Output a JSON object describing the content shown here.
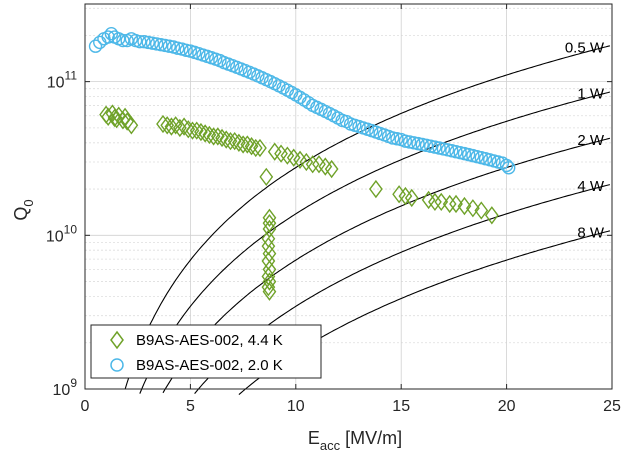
{
  "chart_data": {
    "type": "scatter",
    "xlabel_main": "E",
    "xlabel_sub": "acc",
    "xlabel_unit": " [MV/m]",
    "ylabel_main": "Q",
    "ylabel_sub": "0",
    "xlim": [
      0,
      25
    ],
    "ylim": [
      1000000000.0,
      320000000000.0
    ],
    "y_scale": "log",
    "grid": true,
    "legend_position": "bottom-left",
    "x_ticks": [
      0,
      5,
      10,
      15,
      20,
      25
    ],
    "x_tick_labels": [
      "0",
      "5",
      "10",
      "15",
      "20",
      "25"
    ],
    "y_ticks": [
      1000000000.0,
      10000000000.0,
      100000000000.0
    ],
    "y_tick_labels": [
      {
        "base": "10",
        "exp": "9"
      },
      {
        "base": "10",
        "exp": "10"
      },
      {
        "base": "10",
        "exp": "11"
      }
    ],
    "power_curves": [
      {
        "label": "0.5 W",
        "watts": 0.5
      },
      {
        "label": "1 W",
        "watts": 1
      },
      {
        "label": "2 W",
        "watts": 2
      },
      {
        "label": "4 W",
        "watts": 4
      },
      {
        "label": "8 W",
        "watts": 8
      }
    ],
    "series": [
      {
        "name": "B9AS-AES-002, 4.4 K",
        "marker": "diamond",
        "color": "#6fa229",
        "points": [
          [
            1.0,
            61000000000.0
          ],
          [
            1.1,
            59000000000.0
          ],
          [
            1.3,
            62000000000.0
          ],
          [
            1.4,
            58000000000.0
          ],
          [
            1.5,
            57000000000.0
          ],
          [
            1.6,
            60000000000.0
          ],
          [
            1.8,
            56000000000.0
          ],
          [
            1.9,
            59000000000.0
          ],
          [
            2.0,
            55000000000.0
          ],
          [
            2.2,
            52000000000.0
          ],
          [
            3.7,
            53000000000.0
          ],
          [
            3.9,
            52000000000.0
          ],
          [
            4.1,
            51000000000.0
          ],
          [
            4.3,
            52000000000.0
          ],
          [
            4.5,
            50000000000.0
          ],
          [
            4.7,
            51000000000.0
          ],
          [
            4.9,
            49000000000.0
          ],
          [
            5.1,
            48000000000.0
          ],
          [
            5.3,
            48000000000.0
          ],
          [
            5.5,
            47000000000.0
          ],
          [
            5.7,
            46000000000.0
          ],
          [
            5.9,
            45000000000.0
          ],
          [
            6.1,
            44000000000.0
          ],
          [
            6.3,
            44000000000.0
          ],
          [
            6.5,
            43000000000.0
          ],
          [
            6.7,
            42000000000.0
          ],
          [
            6.9,
            41000000000.0
          ],
          [
            7.1,
            41000000000.0
          ],
          [
            7.3,
            40000000000.0
          ],
          [
            7.5,
            39000000000.0
          ],
          [
            7.7,
            39000000000.0
          ],
          [
            7.9,
            38000000000.0
          ],
          [
            8.1,
            37000000000.0
          ],
          [
            8.3,
            37000000000.0
          ],
          [
            8.6,
            24000000000.0
          ],
          [
            9.0,
            35000000000.0
          ],
          [
            9.3,
            34000000000.0
          ],
          [
            9.6,
            33000000000.0
          ],
          [
            9.9,
            32000000000.0
          ],
          [
            10.2,
            31000000000.0
          ],
          [
            10.5,
            30000000000.0
          ],
          [
            10.8,
            29000000000.0
          ],
          [
            11.1,
            29000000000.0
          ],
          [
            11.4,
            28000000000.0
          ],
          [
            11.7,
            27000000000.0
          ],
          [
            8.75,
            13000000000.0
          ],
          [
            8.75,
            12000000000.0
          ],
          [
            8.75,
            11000000000.0
          ],
          [
            8.7,
            9500000000.0
          ],
          [
            8.7,
            8500000000.0
          ],
          [
            8.75,
            7600000000.0
          ],
          [
            8.7,
            6800000000.0
          ],
          [
            8.75,
            6000000000.0
          ],
          [
            8.7,
            5400000000.0
          ],
          [
            8.75,
            5000000000.0
          ],
          [
            8.7,
            4600000000.0
          ],
          [
            8.75,
            4300000000.0
          ],
          [
            13.8,
            20000000000.0
          ],
          [
            14.9,
            18500000000.0
          ],
          [
            15.2,
            18000000000.0
          ],
          [
            15.5,
            17500000000.0
          ],
          [
            16.3,
            17000000000.0
          ],
          [
            16.6,
            16500000000.0
          ],
          [
            16.9,
            16500000000.0
          ],
          [
            17.3,
            16000000000.0
          ],
          [
            17.6,
            16000000000.0
          ],
          [
            18.0,
            15500000000.0
          ],
          [
            18.4,
            15000000000.0
          ],
          [
            18.8,
            14500000000.0
          ],
          [
            19.3,
            13500000000.0
          ]
        ]
      },
      {
        "name": "B9AS-AES-002, 2.0 K",
        "marker": "circle",
        "color": "#4db8e8",
        "points": [
          [
            0.5,
            170000000000.0
          ],
          [
            0.7,
            180000000000.0
          ],
          [
            0.9,
            190000000000.0
          ],
          [
            1.1,
            195000000000.0
          ],
          [
            1.25,
            205000000000.0
          ],
          [
            1.4,
            195000000000.0
          ],
          [
            1.6,
            190000000000.0
          ],
          [
            1.8,
            185000000000.0
          ],
          [
            2.0,
            185000000000.0
          ],
          [
            2.2,
            190000000000.0
          ],
          [
            2.4,
            185000000000.0
          ],
          [
            2.6,
            182000000000.0
          ],
          [
            2.8,
            182000000000.0
          ],
          [
            3.0,
            180000000000.0
          ],
          [
            3.2,
            178000000000.0
          ],
          [
            3.4,
            176000000000.0
          ],
          [
            3.6,
            174000000000.0
          ],
          [
            3.8,
            172000000000.0
          ],
          [
            4.0,
            170000000000.0
          ],
          [
            4.2,
            168000000000.0
          ],
          [
            4.4,
            165000000000.0
          ],
          [
            4.6,
            163000000000.0
          ],
          [
            4.8,
            160000000000.0
          ],
          [
            5.0,
            158000000000.0
          ],
          [
            5.2,
            155000000000.0
          ],
          [
            5.4,
            152000000000.0
          ],
          [
            5.6,
            149000000000.0
          ],
          [
            5.8,
            146000000000.0
          ],
          [
            6.0,
            143000000000.0
          ],
          [
            6.2,
            140000000000.0
          ],
          [
            6.4,
            137000000000.0
          ],
          [
            6.6,
            133000000000.0
          ],
          [
            6.8,
            130000000000.0
          ],
          [
            7.0,
            127000000000.0
          ],
          [
            7.2,
            124000000000.0
          ],
          [
            7.4,
            121000000000.0
          ],
          [
            7.6,
            118000000000.0
          ],
          [
            7.8,
            115000000000.0
          ],
          [
            8.0,
            112000000000.0
          ],
          [
            8.2,
            109000000000.0
          ],
          [
            8.4,
            106000000000.0
          ],
          [
            8.6,
            103000000000.0
          ],
          [
            8.8,
            100000000000.0
          ],
          [
            9.0,
            97000000000.0
          ],
          [
            9.2,
            94000000000.0
          ],
          [
            9.4,
            91000000000.0
          ],
          [
            9.6,
            88000000000.0
          ],
          [
            9.8,
            85000000000.0
          ],
          [
            10.0,
            82000000000.0
          ],
          [
            10.2,
            79000000000.0
          ],
          [
            10.4,
            76000000000.0
          ],
          [
            10.6,
            73000000000.0
          ],
          [
            10.8,
            70000000000.0
          ],
          [
            11.0,
            68000000000.0
          ],
          [
            11.2,
            66000000000.0
          ],
          [
            11.4,
            64000000000.0
          ],
          [
            11.6,
            62000000000.0
          ],
          [
            11.8,
            60000000000.0
          ],
          [
            12.0,
            58000000000.0
          ],
          [
            12.2,
            56000000000.0
          ],
          [
            12.4,
            55000000000.0
          ],
          [
            12.6,
            53000000000.0
          ],
          [
            12.8,
            52000000000.0
          ],
          [
            13.0,
            51000000000.0
          ],
          [
            13.2,
            50000000000.0
          ],
          [
            13.4,
            49000000000.0
          ],
          [
            13.6,
            48000000000.0
          ],
          [
            13.8,
            47000000000.0
          ],
          [
            14.0,
            46000000000.0
          ],
          [
            14.2,
            45000000000.0
          ],
          [
            14.4,
            44000000000.0
          ],
          [
            14.6,
            43000000000.0
          ],
          [
            14.8,
            42500000000.0
          ],
          [
            15.0,
            42000000000.0
          ],
          [
            15.2,
            41000000000.0
          ],
          [
            15.4,
            40500000000.0
          ],
          [
            15.6,
            40000000000.0
          ],
          [
            15.8,
            39500000000.0
          ],
          [
            16.0,
            39000000000.0
          ],
          [
            16.2,
            38500000000.0
          ],
          [
            16.4,
            38000000000.0
          ],
          [
            16.6,
            37500000000.0
          ],
          [
            16.8,
            37000000000.0
          ],
          [
            17.0,
            36500000000.0
          ],
          [
            17.2,
            36000000000.0
          ],
          [
            17.4,
            35500000000.0
          ],
          [
            17.6,
            35000000000.0
          ],
          [
            17.8,
            34500000000.0
          ],
          [
            18.0,
            34000000000.0
          ],
          [
            18.2,
            33500000000.0
          ],
          [
            18.4,
            33000000000.0
          ],
          [
            18.6,
            32500000000.0
          ],
          [
            18.8,
            32000000000.0
          ],
          [
            19.0,
            31500000000.0
          ],
          [
            19.2,
            31000000000.0
          ],
          [
            19.4,
            30500000000.0
          ],
          [
            19.6,
            30000000000.0
          ],
          [
            19.8,
            29500000000.0
          ],
          [
            20.0,
            28500000000.0
          ],
          [
            20.1,
            27500000000.0
          ]
        ]
      }
    ]
  }
}
